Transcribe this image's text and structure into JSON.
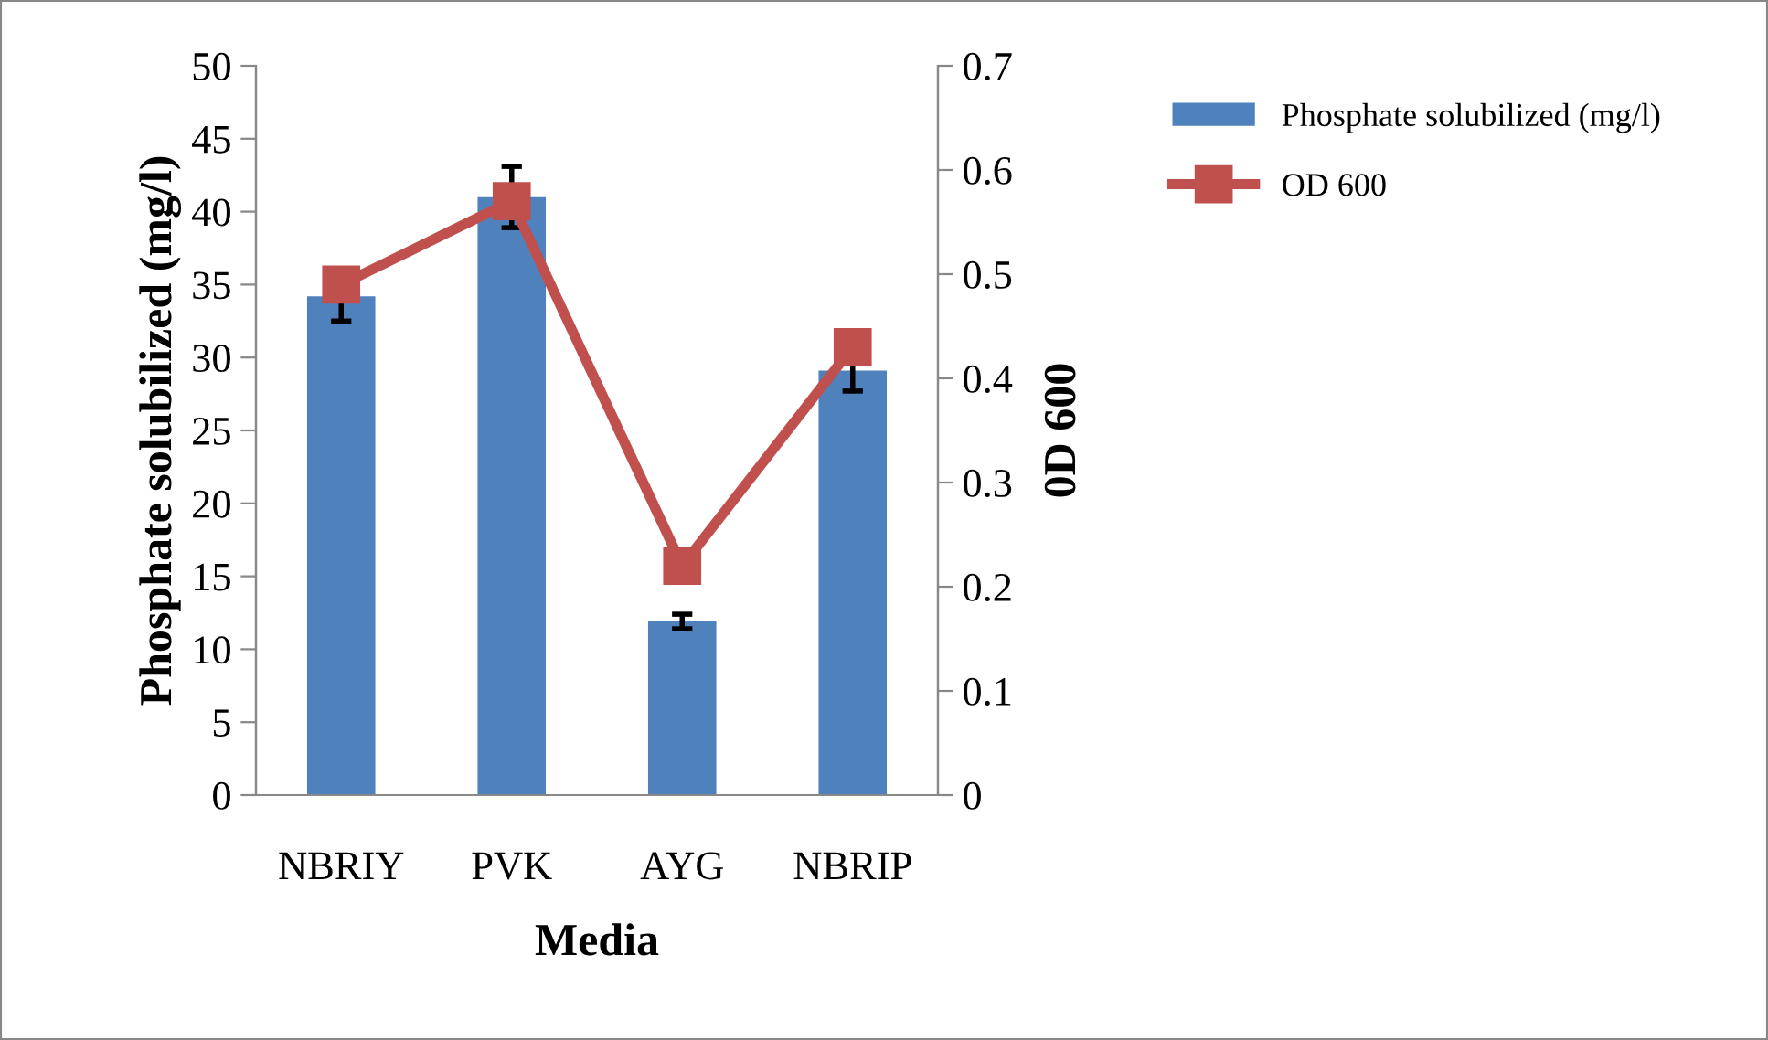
{
  "chart_data": {
    "type": "bar",
    "xlabel": "Media",
    "ylabel": "Phosphate solubilized (mg/l)",
    "y2label": "0D 600",
    "categories": [
      "NBRIY",
      "PVK",
      "AYG",
      "NBRIP"
    ],
    "series": [
      {
        "name": "Phosphate solubilized (mg/l)",
        "color": "#4f81bd",
        "values": [
          34.2,
          41.0,
          11.9,
          29.1
        ],
        "errors": [
          1.7,
          2.1,
          0.5,
          1.4
        ]
      },
      {
        "name": "OD 600",
        "type": "line",
        "axis": "y2",
        "color": "#c0504d",
        "marker": "square",
        "values": [
          0.49,
          0.57,
          0.22,
          0.43
        ]
      }
    ],
    "ylim": [
      0,
      50
    ],
    "yticks": [
      0,
      5,
      10,
      15,
      20,
      25,
      30,
      35,
      40,
      45,
      50
    ],
    "y2lim": [
      0,
      0.7
    ],
    "y2ticks": [
      0,
      0.1,
      0.2,
      0.3,
      0.4,
      0.5,
      0.6,
      0.7
    ],
    "grid": false,
    "legend": "top right"
  }
}
